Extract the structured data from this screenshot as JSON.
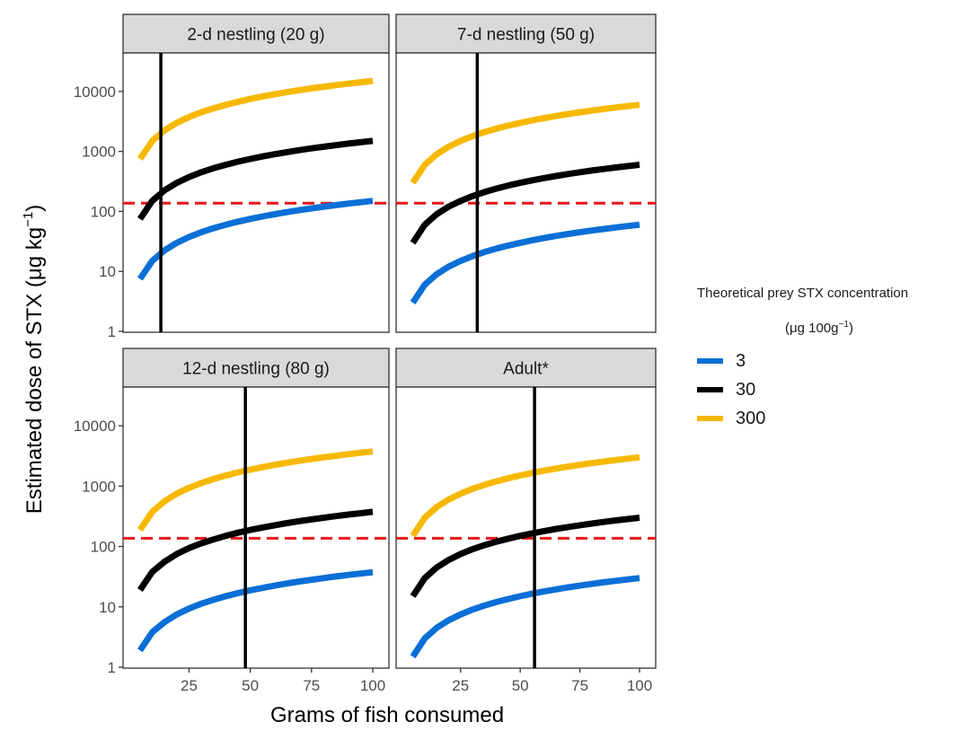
{
  "chart_data": {
    "type": "line",
    "ylabel_main": "Estimated dose of STX (μg kg",
    "ylabel_sup": "−1",
    "ylabel_close": ")",
    "xlabel": "Grams of fish consumed",
    "x_ticks": [
      "25",
      "50",
      "75",
      "100"
    ],
    "y_ticks": [
      "1",
      "10",
      "100",
      "1000",
      "10000"
    ],
    "y_scale": "log10",
    "xlim": [
      1,
      100
    ],
    "ylim": [
      1,
      30000
    ],
    "threshold": 137,
    "x": [
      5,
      10,
      15,
      20,
      25,
      30,
      35,
      40,
      45,
      50,
      55,
      60,
      65,
      70,
      75,
      80,
      85,
      90,
      95,
      100
    ],
    "panels": [
      {
        "title": "2-d nestling (20 g)",
        "vline": 13.5,
        "series": [
          {
            "name": "3",
            "values": [
              7.5,
              15,
              22.5,
              30,
              37.5,
              45,
              52.5,
              60,
              67.5,
              75,
              82.5,
              90,
              97.5,
              105,
              112.5,
              120,
              127.5,
              135,
              142.5,
              150
            ]
          },
          {
            "name": "30",
            "values": [
              75,
              150,
              225,
              300,
              375,
              450,
              525,
              600,
              675,
              750,
              825,
              900,
              975,
              1050,
              1125,
              1200,
              1275,
              1350,
              1425,
              1500
            ]
          },
          {
            "name": "300",
            "values": [
              750,
              1500,
              2250,
              3000,
              3750,
              4500,
              5250,
              6000,
              6750,
              7500,
              8250,
              9000,
              9750,
              10500,
              11250,
              12000,
              12750,
              13500,
              14250,
              15000
            ]
          }
        ]
      },
      {
        "title": "7-d nestling (50 g)",
        "vline": 32,
        "series": [
          {
            "name": "3",
            "values": [
              3,
              6,
              9,
              12,
              15,
              18,
              21,
              24,
              27,
              30,
              33,
              36,
              39,
              42,
              45,
              48,
              51,
              54,
              57,
              60
            ]
          },
          {
            "name": "30",
            "values": [
              30,
              60,
              90,
              120,
              150,
              180,
              210,
              240,
              270,
              300,
              330,
              360,
              390,
              420,
              450,
              480,
              510,
              540,
              570,
              600
            ]
          },
          {
            "name": "300",
            "values": [
              300,
              600,
              900,
              1200,
              1500,
              1800,
              2100,
              2400,
              2700,
              3000,
              3300,
              3600,
              3900,
              4200,
              4500,
              4800,
              5100,
              5400,
              5700,
              6000
            ]
          }
        ]
      },
      {
        "title": "12-d nestling (80 g)",
        "vline": 48,
        "series": [
          {
            "name": "3",
            "values": [
              1.9,
              3.8,
              5.6,
              7.5,
              9.4,
              11.3,
              13.1,
              15,
              16.9,
              18.8,
              20.6,
              22.5,
              24.4,
              26.3,
              28.1,
              30,
              31.9,
              33.8,
              35.6,
              37.5
            ]
          },
          {
            "name": "30",
            "values": [
              19,
              38,
              56,
              75,
              94,
              113,
              131,
              150,
              169,
              188,
              206,
              225,
              244,
              263,
              281,
              300,
              319,
              338,
              356,
              375
            ]
          },
          {
            "name": "300",
            "values": [
              188,
              375,
              563,
              750,
              938,
              1125,
              1313,
              1500,
              1688,
              1875,
              2063,
              2250,
              2438,
              2625,
              2813,
              3000,
              3188,
              3375,
              3563,
              3750
            ]
          }
        ]
      },
      {
        "title": "Adult*",
        "vline": 56,
        "series": [
          {
            "name": "3",
            "values": [
              1.5,
              3,
              4.5,
              6,
              7.5,
              9,
              10.5,
              12,
              13.5,
              15,
              16.5,
              18,
              19.5,
              21,
              22.5,
              24,
              25.5,
              27,
              28.5,
              30
            ]
          },
          {
            "name": "30",
            "values": [
              15,
              30,
              45,
              60,
              75,
              90,
              105,
              120,
              135,
              150,
              165,
              180,
              195,
              210,
              225,
              240,
              255,
              270,
              285,
              300
            ]
          },
          {
            "name": "300",
            "values": [
              150,
              300,
              450,
              600,
              750,
              900,
              1050,
              1200,
              1350,
              1500,
              1650,
              1800,
              1950,
              2100,
              2250,
              2400,
              2550,
              2700,
              2850,
              3000
            ]
          }
        ]
      }
    ],
    "legend": {
      "title": "Theoretical prey STX concentration",
      "subtitle_main": "(μg 100g",
      "subtitle_sup": "−1",
      "subtitle_close": ")",
      "position": "right",
      "items": [
        {
          "label": "3",
          "color": "#0a6fd6"
        },
        {
          "label": "30",
          "color": "#000000"
        },
        {
          "label": "300",
          "color": "#f7b800"
        }
      ]
    },
    "colors": {
      "threshold": "#e8141b",
      "vline": "#000000",
      "strip_fill": "#d9d9d9"
    }
  }
}
